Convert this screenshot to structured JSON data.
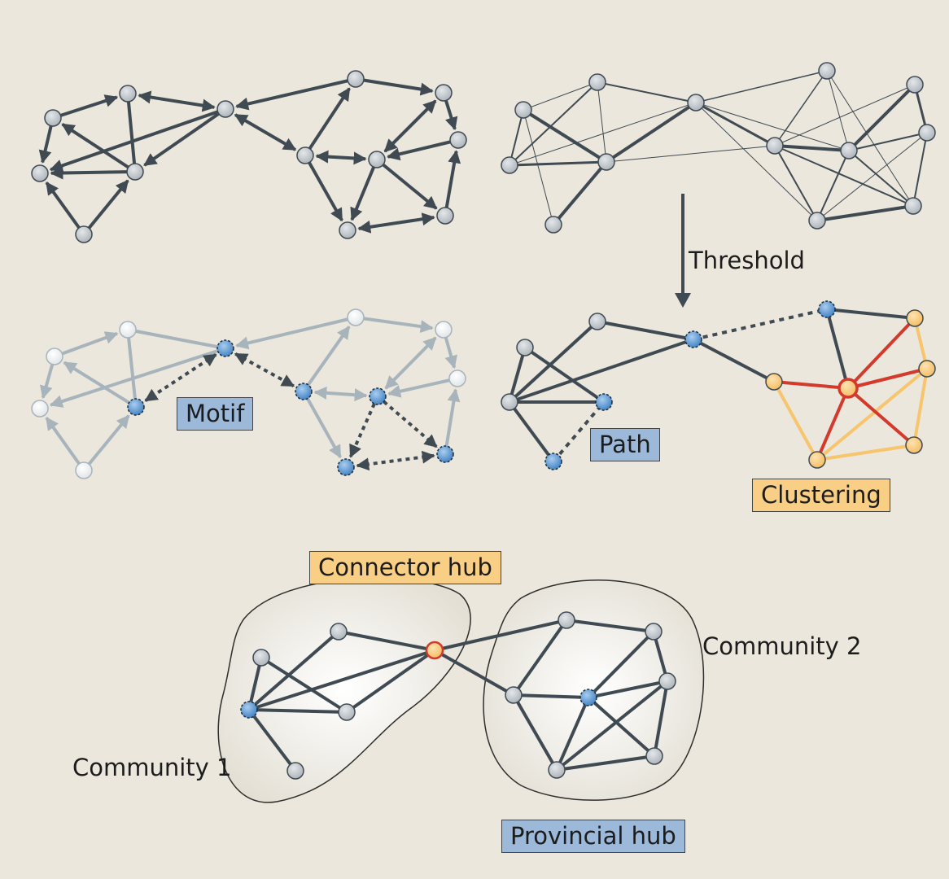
{
  "labels": {
    "threshold": "Threshold",
    "motif": "Motif",
    "path": "Path",
    "clustering": "Clustering",
    "connector_hub": "Connector hub",
    "community_1": "Community 1",
    "community_2": "Community 2",
    "provincial_hub": "Provincial hub"
  },
  "colors": {
    "background": "#ebe7dd",
    "edge_dark": "#3f4a52",
    "edge_faded": "#a8b4bc",
    "node_gray": "#c4c9ce",
    "node_faded": "#eef0f1",
    "node_blue": "#5d9bd6",
    "node_orange": "#f9cf85",
    "edge_red": "#d33a2c",
    "edge_orange": "#f6c56d",
    "box_blue": "#9cb9da",
    "box_orange": "#f9cf85"
  }
}
